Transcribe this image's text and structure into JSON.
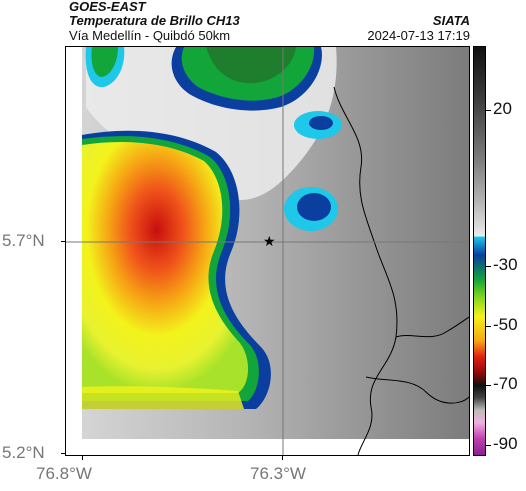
{
  "header": {
    "satellite": "GOES-EAST",
    "product": "Temperatura de Brillo CH13",
    "route": "Vía Medellín - Quibdó 50km",
    "agency": "SIATA",
    "timestamp": "2024-07-13 17:19"
  },
  "axes": {
    "y_ticks": [
      "5.7°N",
      "5.2°N"
    ],
    "x_ticks": [
      "76.8°W",
      "76.3°W"
    ]
  },
  "colorbar": {
    "labels": [
      "20",
      "-30",
      "-50",
      "-70",
      "-90"
    ],
    "colors": {
      "warm_gray": "#888888",
      "cold_cyan": "#1fc7e8",
      "blue": "#0a3fa0",
      "green": "#11a53a",
      "yellow": "#f3f31c",
      "orange": "#f6a614",
      "red": "#e21e12"
    }
  },
  "map": {
    "marker": "star-marker",
    "marker_symbol": "★"
  }
}
